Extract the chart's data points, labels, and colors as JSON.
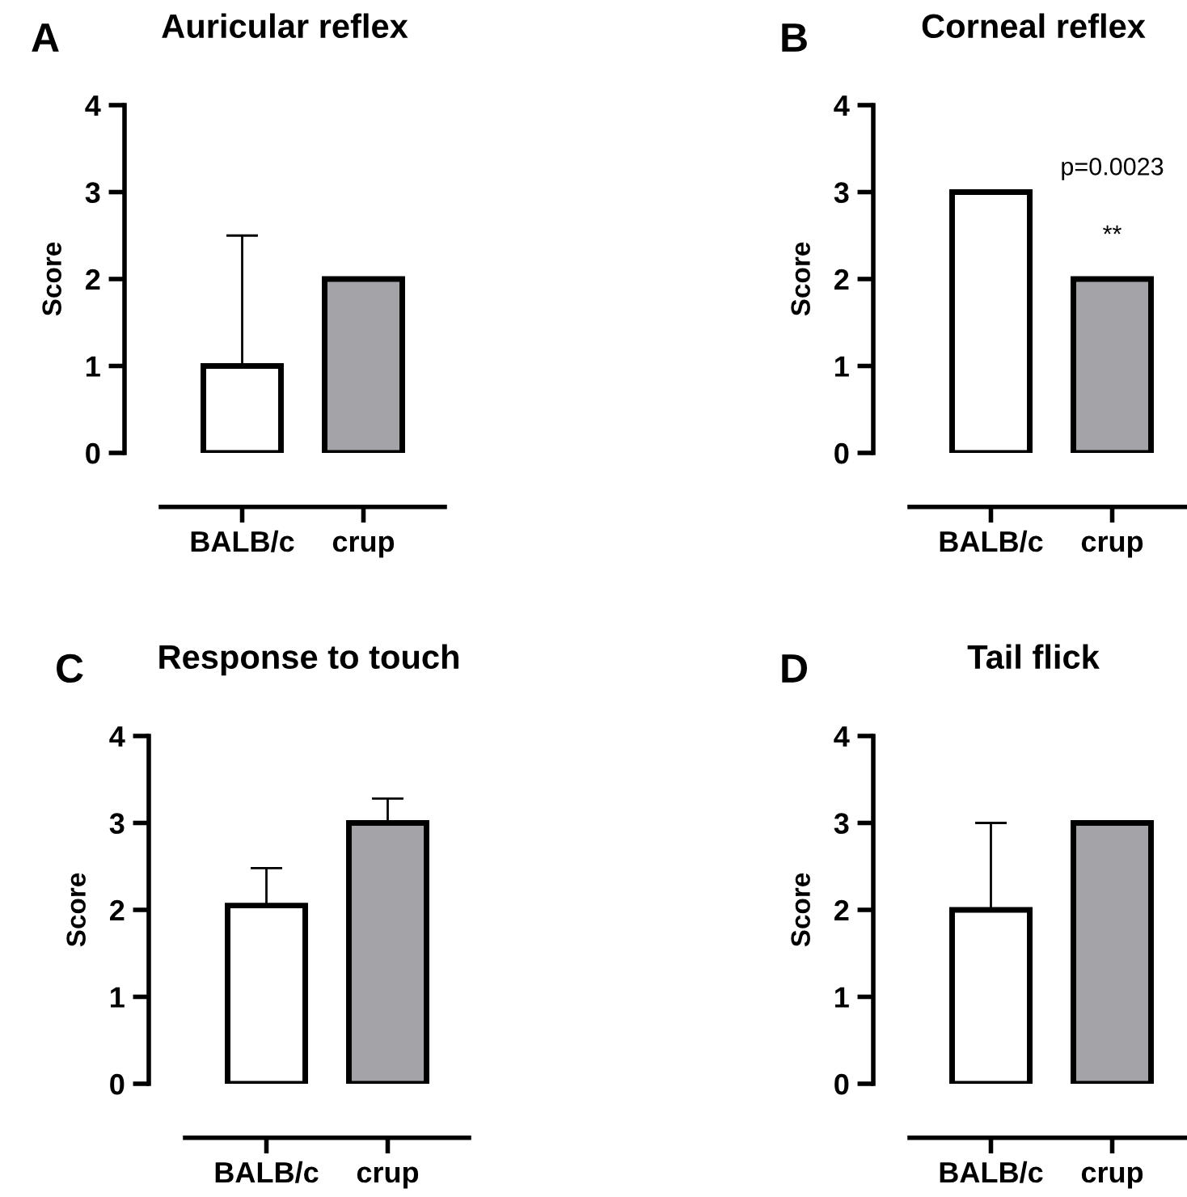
{
  "chart_data": [
    {
      "type": "bar",
      "title": "Auricular reflex",
      "ylabel": "Score",
      "categories": [
        "BALB/c",
        "crup"
      ],
      "values": [
        1,
        2
      ],
      "colors": [
        "#ffffff",
        "#a4a4a8"
      ],
      "errors": [
        [
          1,
          2.5
        ],
        null
      ],
      "ylim": [
        0,
        4
      ],
      "yticks": [
        0,
        1,
        2,
        3,
        4
      ],
      "annotations": [
        "A"
      ]
    },
    {
      "type": "bar",
      "title": "Corneal reflex",
      "ylabel": "Score",
      "categories": [
        "BALB/c",
        "crup"
      ],
      "values": [
        3,
        2
      ],
      "colors": [
        "#ffffff",
        "#a4a4a8"
      ],
      "errors": [
        0,
        0
      ],
      "ylim": [
        0,
        4
      ],
      "yticks": [
        0,
        1,
        2,
        3,
        4
      ],
      "annotations": [
        "B",
        "**",
        "p=0.0023"
      ]
    },
    {
      "type": "bar",
      "title": "Response to touch",
      "ylabel": "Score",
      "categories": [
        "BALB/c",
        "crup"
      ],
      "values": [
        2.05,
        3
      ],
      "colors": [
        "#ffffff",
        "#a4a4a8"
      ],
      "errors": [
        [
          2.05,
          2.48
        ],
        [
          3,
          3.28
        ]
      ],
      "ylim": [
        0,
        4
      ],
      "yticks": [
        0,
        1,
        2,
        3,
        4
      ],
      "annotations": [
        "C"
      ]
    },
    {
      "type": "bar",
      "title": "Tail flick",
      "ylabel": "Score",
      "categories": [
        "BALB/c",
        "crup"
      ],
      "values": [
        2,
        3
      ],
      "colors": [
        "#ffffff",
        "#a4a4a8"
      ],
      "errors": [
        [
          2,
          3
        ],
        0
      ],
      "ylim": [
        0,
        4
      ],
      "yticks": [
        0,
        1,
        2,
        3,
        4
      ],
      "annotations": [
        "D"
      ]
    }
  ]
}
